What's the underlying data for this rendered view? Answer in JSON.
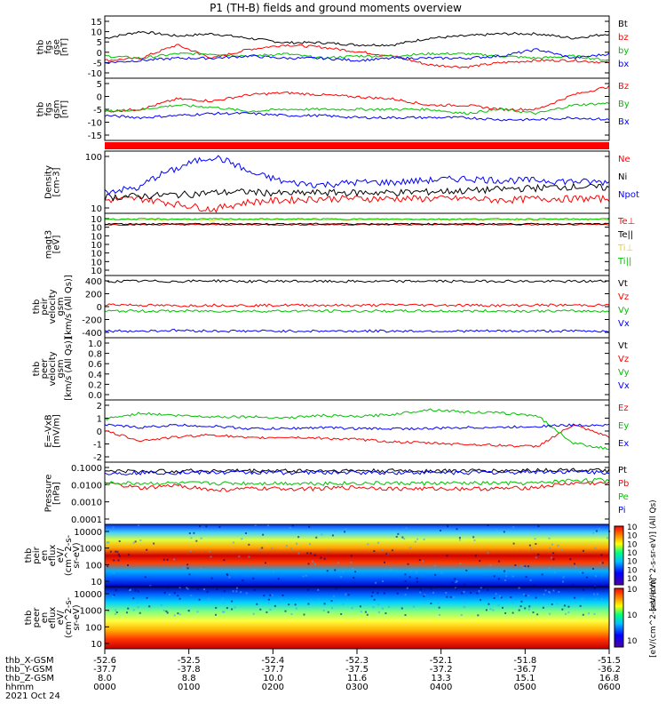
{
  "title": "P1 (TH-B) fields and ground moments overview",
  "chart_data": [
    {
      "type": "line",
      "ylabel": [
        "thb",
        "fgs",
        "gse",
        "[nT]"
      ],
      "yticks": [
        "15",
        "10",
        "5",
        "0",
        "-5",
        "-10"
      ],
      "ylim": [
        -12,
        16
      ],
      "series": [
        {
          "name": "Bt",
          "color": "#000000",
          "values": [
            6,
            9,
            7,
            8,
            6,
            4,
            4,
            3,
            3,
            6,
            7,
            8,
            8,
            6,
            8
          ]
        },
        {
          "name": "bz",
          "color": "#ff0000",
          "values": [
            -4,
            -3,
            3,
            -3,
            1,
            3,
            2,
            0,
            -2,
            -6,
            -7,
            -5,
            -4,
            -4,
            -5
          ]
        },
        {
          "name": "by",
          "color": "#00c000",
          "values": [
            -2,
            -3,
            -1,
            -1,
            -2,
            -1,
            -3,
            -2,
            -2,
            -1,
            -1,
            -2,
            -3,
            -2,
            -4
          ]
        },
        {
          "name": "bx",
          "color": "#0000ff",
          "values": [
            -5,
            -4,
            -3,
            -3,
            -2,
            -3,
            -3,
            -4,
            -3,
            -3,
            -3,
            -2,
            1,
            -3,
            -1
          ]
        }
      ]
    },
    {
      "type": "line",
      "ylabel": [
        "thb",
        "fgs",
        "gsm",
        "[nT]"
      ],
      "yticks": [
        "5",
        "0",
        "-5",
        "-10",
        "-15"
      ],
      "ylim": [
        -17,
        13
      ],
      "series": [
        {
          "name": "Bz",
          "color": "#ff0000",
          "values": [
            -3,
            -2,
            3,
            2,
            5,
            6,
            5,
            4,
            3,
            0,
            0,
            -2,
            -2,
            5,
            9
          ]
        },
        {
          "name": "By",
          "color": "#00c000",
          "values": [
            -3,
            -2,
            0,
            -1,
            -3,
            -2,
            -2,
            -2,
            -2,
            -2,
            -4,
            -2,
            -4,
            0,
            1
          ]
        },
        {
          "name": "Bx",
          "color": "#0000ff",
          "values": [
            -5,
            -6,
            -5,
            -4,
            -4,
            -5,
            -5,
            -6,
            -6,
            -6,
            -6,
            -7,
            -7,
            -6,
            -7
          ]
        }
      ]
    },
    {
      "type": "line",
      "log": true,
      "ylabel": [
        "Density",
        "[cm-3]"
      ],
      "yticks": [
        "100",
        "10"
      ],
      "ylim": [
        3,
        300
      ],
      "series": [
        {
          "name": "Ne",
          "color": "#ff0000",
          "values": [
            8,
            9,
            6,
            4,
            7,
            8,
            9,
            9,
            9,
            9,
            9,
            8,
            9,
            9,
            9
          ]
        },
        {
          "name": "Ni",
          "color": "#000000",
          "values": [
            10,
            11,
            12,
            14,
            15,
            13,
            14,
            14,
            14,
            15,
            16,
            18,
            20,
            22,
            20
          ]
        },
        {
          "name": "Npot",
          "color": "#0000ff",
          "values": [
            15,
            20,
            80,
            200,
            60,
            30,
            25,
            30,
            30,
            35,
            40,
            35,
            35,
            32,
            30
          ]
        }
      ]
    },
    {
      "type": "line",
      "log": true,
      "ylabel": [
        "magt3",
        "[eV]"
      ],
      "yticks": [
        "10",
        "10",
        "10",
        "10",
        "10",
        "10",
        "10"
      ],
      "ylim": [
        1e-06,
        10000
      ],
      "series": [
        {
          "name": "Te⊥",
          "color": "#ff0000",
          "values": [
            150,
            150,
            150,
            150,
            150,
            150,
            150,
            150,
            150,
            150,
            150,
            150,
            150,
            150,
            150
          ]
        },
        {
          "name": "Te||",
          "color": "#000000",
          "values": [
            200,
            200,
            200,
            200,
            200,
            200,
            200,
            200,
            200,
            200,
            200,
            200,
            200,
            200,
            200
          ]
        },
        {
          "name": "Ti⊥",
          "color": "#ffd000",
          "values": [
            900,
            900,
            900,
            900,
            900,
            900,
            900,
            900,
            900,
            900,
            900,
            900,
            900,
            900,
            900
          ]
        },
        {
          "name": "Ti||",
          "color": "#00c000",
          "values": [
            1200,
            1200,
            1200,
            1200,
            1200,
            1200,
            1200,
            1200,
            1200,
            1200,
            1200,
            1200,
            1200,
            1200,
            1200
          ]
        }
      ]
    },
    {
      "type": "line",
      "ylabel": [
        "thb",
        "peir",
        "velocity",
        "gsm",
        "[km/s (All Qs)]"
      ],
      "yticks": [
        "400",
        "200",
        "0",
        "-200",
        "-400"
      ],
      "ylim": [
        -420,
        420
      ],
      "series": [
        {
          "name": "Vt",
          "color": "#000000",
          "values": [
            340,
            345,
            340,
            350,
            340,
            345,
            340,
            340,
            340,
            345,
            340,
            345,
            340,
            340,
            345
          ]
        },
        {
          "name": "Vz",
          "color": "#ff0000",
          "values": [
            30,
            20,
            10,
            20,
            15,
            20,
            20,
            15,
            25,
            20,
            20,
            15,
            20,
            20,
            20
          ]
        },
        {
          "name": "Vy",
          "color": "#00c000",
          "values": [
            -60,
            -60,
            -60,
            -60,
            -60,
            -60,
            -60,
            -60,
            -60,
            -60,
            -60,
            -60,
            -60,
            -60,
            -60
          ]
        },
        {
          "name": "Vx",
          "color": "#0000ff",
          "values": [
            -330,
            -330,
            -320,
            -330,
            -330,
            -330,
            -330,
            -330,
            -330,
            -330,
            -330,
            -330,
            -330,
            -330,
            -330
          ]
        }
      ]
    },
    {
      "type": "line",
      "empty": true,
      "ylabel": [
        "thb",
        "peer",
        "velocity",
        "gsm",
        "[km/s (All Qs)]"
      ],
      "yticks": [
        "1.0",
        "0.8",
        "0.6",
        "0.4",
        "0.2",
        "0.0"
      ],
      "ylim": [
        0,
        1
      ],
      "series": [
        {
          "name": "Vt",
          "color": "#000000",
          "values": []
        },
        {
          "name": "Vz",
          "color": "#ff0000",
          "values": []
        },
        {
          "name": "Vy",
          "color": "#00c000",
          "values": []
        },
        {
          "name": "Vx",
          "color": "#0000ff",
          "values": []
        }
      ]
    },
    {
      "type": "line",
      "ylabel": [
        "E=-VxB",
        "[mV/m]"
      ],
      "yticks": [
        "2",
        "1",
        "0",
        "-1",
        "-2"
      ],
      "ylim": [
        -2.6,
        2.6
      ],
      "series": [
        {
          "name": "Ez",
          "color": "#ff0000",
          "values": [
            0,
            -0.8,
            -0.5,
            -0.3,
            -0.6,
            -0.5,
            -0.6,
            -0.7,
            -0.9,
            -1,
            -1.1,
            -1.2,
            -1.3,
            0.5,
            -0.5
          ]
        },
        {
          "name": "Ey",
          "color": "#00c000",
          "values": [
            1,
            1.5,
            1.3,
            1.2,
            1.2,
            1.1,
            1.3,
            1.2,
            1.4,
            1.8,
            1.6,
            1.5,
            1.3,
            -1,
            -1.5
          ]
        },
        {
          "name": "Ex",
          "color": "#0000ff",
          "values": [
            0.5,
            0.3,
            0.5,
            0.4,
            0.2,
            0.2,
            0.3,
            0.2,
            0.2,
            0.2,
            0.3,
            0.3,
            0.4,
            0.5,
            0.5
          ]
        }
      ]
    },
    {
      "type": "line",
      "log": true,
      "ylabel": [
        "Pressure",
        "[nPa]"
      ],
      "yticks": [
        "0.1000",
        "0.0100",
        "0.0010",
        "0.0001"
      ],
      "ylim": [
        0.0001,
        0.3
      ],
      "series": [
        {
          "name": "Pt",
          "color": "#000000",
          "values": [
            0.1,
            0.09,
            0.1,
            0.1,
            0.1,
            0.1,
            0.1,
            0.1,
            0.1,
            0.1,
            0.1,
            0.1,
            0.11,
            0.11,
            0.1
          ]
        },
        {
          "name": "Pb",
          "color": "#ff0000",
          "values": [
            0.02,
            0.01,
            0.015,
            0.008,
            0.01,
            0.01,
            0.01,
            0.012,
            0.01,
            0.01,
            0.01,
            0.01,
            0.012,
            0.02,
            0.02
          ]
        },
        {
          "name": "Pe",
          "color": "#00c000",
          "values": [
            0.02,
            0.02,
            0.02,
            0.02,
            0.02,
            0.02,
            0.02,
            0.02,
            0.02,
            0.02,
            0.02,
            0.02,
            0.02,
            0.03,
            0.03
          ]
        },
        {
          "name": "Pi",
          "color": "#0000ff",
          "values": [
            0.07,
            0.08,
            0.08,
            0.08,
            0.08,
            0.08,
            0.08,
            0.08,
            0.08,
            0.08,
            0.08,
            0.08,
            0.09,
            0.09,
            0.08
          ]
        }
      ]
    },
    {
      "type": "heatmap",
      "ylabel": [
        "thb",
        "peir",
        "en",
        "eflux",
        "eV/",
        "(cm^2-s-",
        "sr-eV)"
      ],
      "yticks": [
        "10000",
        "1000",
        "100",
        "10"
      ],
      "colorbar": [
        "10",
        "10",
        "10",
        "10",
        "10",
        "10",
        "10"
      ],
      "colorbar_label": "[eV/(cm^2-s-sr-eV)] (All Qs)"
    },
    {
      "type": "heatmap",
      "ylabel": [
        "thb",
        "peer",
        "en",
        "eflux",
        "eV/",
        "(cm^2-s-",
        "sr-eV)"
      ],
      "yticks": [
        "10000",
        "1000",
        "100",
        "10"
      ],
      "colorbar": [
        "10",
        "10",
        "10"
      ],
      "colorbar_label": "[eV/(cm^2-s-sr-eV)]"
    }
  ],
  "xaxis": {
    "rows": [
      {
        "label": "thb_X-GSM",
        "values": [
          "-52.6",
          "-52.5",
          "-52.4",
          "-52.3",
          "-52.1",
          "-51.8",
          "-51.5"
        ]
      },
      {
        "label": "thb_Y-GSM",
        "values": [
          "-37.7",
          "-37.8",
          "-37.7",
          "-37.5",
          "-37.2",
          "-36.7",
          "-36.2"
        ]
      },
      {
        "label": "thb_Z-GSM",
        "values": [
          "8.0",
          "8.8",
          "10.0",
          "11.6",
          "13.3",
          "15.1",
          "16.8"
        ]
      },
      {
        "label": "hhmm",
        "values": [
          "0000",
          "0100",
          "0200",
          "0300",
          "0400",
          "0500",
          "0600"
        ]
      }
    ],
    "date": "2021 Oct 24"
  }
}
